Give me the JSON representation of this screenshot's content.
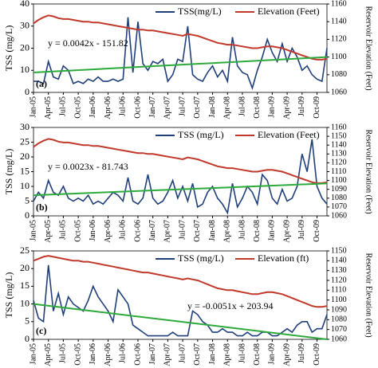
{
  "chart_data": [
    {
      "type": "line",
      "panel_label": "(a)",
      "equation": "y = 0.0042x - 151.82",
      "y_label": "TSS (mg/L)",
      "y2_label": "Reservoir Elevation (Feet)",
      "categories": [
        "Jan-05",
        null,
        null,
        "Apr-05",
        null,
        null,
        "Jul-05",
        null,
        null,
        "Oct-05",
        null,
        null,
        "Jan-06",
        null,
        null,
        "Apr-06",
        null,
        null,
        "Jul-06",
        null,
        null,
        "Oct-06",
        null,
        null,
        "Jan-07",
        null,
        null,
        "Apr-07",
        null,
        null,
        "Jul-07",
        null,
        null,
        "Oct-07",
        null,
        null,
        "Jan-08",
        null,
        null,
        "Apr-08",
        null,
        null,
        "Jul-08",
        null,
        null,
        "Oct-08",
        null,
        null,
        "Jan-09",
        null,
        null,
        "Apr-09",
        null,
        null,
        "Jul-09",
        null,
        null,
        "Oct-09",
        null,
        null
      ],
      "series": [
        {
          "name": "TSS(mg/L)",
          "color": "#1f3f7a",
          "values": [
            5,
            5,
            4,
            14,
            7,
            6,
            12,
            10,
            4,
            5,
            4,
            6,
            5,
            7,
            5,
            5,
            6,
            5,
            6,
            34,
            9,
            32,
            13,
            10,
            14,
            13,
            15,
            5,
            8,
            15,
            14,
            30,
            8,
            6,
            5,
            9,
            12,
            7,
            10,
            5,
            25,
            12,
            9,
            8,
            2,
            10,
            16,
            24,
            18,
            14,
            22,
            14,
            20,
            16,
            10,
            12,
            8,
            6,
            5,
            20
          ]
        },
        {
          "name": "Elevation (Feet)",
          "color": "#c0392b",
          "axis": "y2",
          "values": [
            1138,
            1142,
            1145,
            1147,
            1146,
            1144,
            1143,
            1143,
            1142,
            1141,
            1140,
            1140,
            1139,
            1139,
            1138,
            1137,
            1136,
            1135,
            1134,
            1133,
            1132,
            1131,
            1131,
            1130,
            1130,
            1129,
            1128,
            1127,
            1126,
            1125,
            1124,
            1126,
            1125,
            1124,
            1122,
            1120,
            1118,
            1116,
            1115,
            1114,
            1114,
            1113,
            1112,
            1111,
            1110,
            1110,
            1111,
            1112,
            1112,
            1111,
            1110,
            1108,
            1106,
            1104,
            1102,
            1100,
            1098,
            1097,
            1097,
            1098
          ]
        }
      ],
      "trendline": {
        "color": "#2eaa3c",
        "values": [
          9,
          16
        ]
      },
      "ylim": [
        0,
        40
      ],
      "yticks": [
        0,
        10,
        20,
        30,
        40
      ],
      "y2lim": [
        1060,
        1160
      ],
      "y2ticks": [
        1060,
        1080,
        1100,
        1120,
        1140,
        1160
      ]
    },
    {
      "type": "line",
      "panel_label": "(b)",
      "equation": "y = 0.0023x - 81.743",
      "y_label": "TSS (mg/L)",
      "y2_label": "Reservoir Elevation (Feet)",
      "categories": [
        "Jan-05",
        null,
        null,
        "Apr-05",
        null,
        null,
        "Jul-05",
        null,
        null,
        "Oct-05",
        null,
        null,
        "Jan-06",
        null,
        null,
        "Apr-06",
        null,
        null,
        "Jul-06",
        null,
        null,
        "Oct-06",
        null,
        null,
        "Jan-07",
        null,
        null,
        "Apr-07",
        null,
        null,
        "Jul-07",
        null,
        null,
        "Oct-07",
        null,
        null,
        "Jan-08",
        null,
        null,
        "Apr-08",
        null,
        null,
        "Jul-08",
        null,
        null,
        "Oct-08",
        null,
        null,
        "Jan-09",
        null,
        null,
        "Apr-09",
        null,
        null,
        "Jul-09",
        null,
        null,
        "Oct-09",
        null,
        null
      ],
      "series": [
        {
          "name": "TSS (mg/L)",
          "color": "#1f3f7a",
          "values": [
            5,
            8,
            6,
            12,
            8,
            7,
            10,
            6,
            5,
            6,
            5,
            7,
            4,
            5,
            4,
            6,
            8,
            7,
            5,
            13,
            5,
            4,
            6,
            14,
            6,
            4,
            5,
            8,
            12,
            6,
            10,
            5,
            11,
            3,
            4,
            8,
            10,
            6,
            4,
            1,
            11,
            3,
            6,
            10,
            8,
            4,
            14,
            12,
            6,
            4,
            9,
            5,
            6,
            10,
            21,
            15,
            26,
            10,
            6,
            4
          ]
        },
        {
          "name": "Elevation (Feet)",
          "color": "#c0392b",
          "axis": "y2",
          "values": [
            1138,
            1142,
            1145,
            1147,
            1146,
            1144,
            1143,
            1143,
            1142,
            1141,
            1140,
            1140,
            1139,
            1139,
            1138,
            1137,
            1136,
            1135,
            1134,
            1133,
            1132,
            1131,
            1131,
            1130,
            1130,
            1129,
            1128,
            1127,
            1126,
            1125,
            1124,
            1126,
            1125,
            1124,
            1122,
            1120,
            1118,
            1116,
            1115,
            1114,
            1114,
            1113,
            1112,
            1111,
            1110,
            1110,
            1111,
            1112,
            1112,
            1111,
            1110,
            1108,
            1106,
            1104,
            1102,
            1100,
            1098,
            1097,
            1097,
            1098
          ]
        }
      ],
      "trendline": {
        "color": "#2eaa3c",
        "values": [
          7,
          11
        ]
      },
      "ylim": [
        0,
        30
      ],
      "yticks": [
        0,
        5,
        10,
        15,
        20,
        25,
        30
      ],
      "y2lim": [
        1060,
        1160
      ],
      "y2ticks": [
        1060,
        1070,
        1080,
        1090,
        1100,
        1110,
        1120,
        1130,
        1140,
        1150,
        1160
      ]
    },
    {
      "type": "line",
      "panel_label": "(c)",
      "equation": "y = -0.0051x + 203.94",
      "y_label": "TSS (mg/L)",
      "y2_label": "Reservoir Elevation (Feet)",
      "categories": [
        "Jan-05",
        null,
        null,
        "Apr-05",
        null,
        null,
        "Jul-05",
        null,
        null,
        "Oct-05",
        null,
        null,
        "Jan-06",
        null,
        null,
        "Apr-06",
        null,
        null,
        "Jul-06",
        null,
        null,
        "Oct-06",
        null,
        null,
        "Jan-07",
        null,
        null,
        "Apr-07",
        null,
        null,
        "Jul-07",
        null,
        null,
        "Oct-07",
        null,
        null,
        "Jan-08",
        null,
        null,
        "Apr-08",
        null,
        null,
        "Jul-08",
        null,
        null,
        "Oct-08",
        null,
        null,
        "Jan-09",
        null,
        null,
        "Apr-09",
        null,
        null,
        "Jul-09",
        null,
        null,
        "Oct-09",
        null,
        null
      ],
      "series": [
        {
          "name": "TSS (mg/L)",
          "color": "#1f3f7a",
          "values": [
            11,
            6,
            5,
            21,
            8,
            13,
            7,
            12,
            10,
            9,
            8,
            11,
            15,
            12,
            10,
            8,
            5,
            14,
            12,
            10,
            4,
            3,
            2,
            1,
            1,
            1,
            1,
            1,
            2,
            1,
            1,
            1,
            8,
            7,
            5,
            4,
            2,
            2,
            3,
            2,
            2,
            1,
            1,
            2,
            1,
            1,
            2,
            2,
            1,
            1,
            2,
            3,
            2,
            4,
            5,
            5,
            2,
            3,
            3,
            7
          ]
        },
        {
          "name": "Elevation (ft)",
          "color": "#c0392b",
          "axis": "y2",
          "values": [
            1140,
            1142,
            1144,
            1145,
            1144,
            1143,
            1142,
            1141,
            1140,
            1140,
            1139,
            1139,
            1138,
            1137,
            1136,
            1135,
            1134,
            1133,
            1132,
            1131,
            1130,
            1129,
            1128,
            1128,
            1127,
            1126,
            1125,
            1124,
            1123,
            1122,
            1121,
            1122,
            1121,
            1120,
            1118,
            1116,
            1114,
            1112,
            1111,
            1110,
            1110,
            1109,
            1108,
            1107,
            1106,
            1106,
            1107,
            1108,
            1108,
            1107,
            1106,
            1104,
            1102,
            1100,
            1098,
            1096,
            1094,
            1093,
            1093,
            1094
          ]
        }
      ],
      "trendline": {
        "color": "#2eaa3c",
        "values": [
          10,
          0
        ]
      },
      "ylim": [
        0,
        25
      ],
      "yticks": [
        0,
        5,
        10,
        15,
        20,
        25
      ],
      "y2lim": [
        1060,
        1150
      ],
      "y2ticks": [
        1060,
        1070,
        1080,
        1090,
        1100,
        1110,
        1120,
        1130,
        1140,
        1150
      ]
    }
  ]
}
